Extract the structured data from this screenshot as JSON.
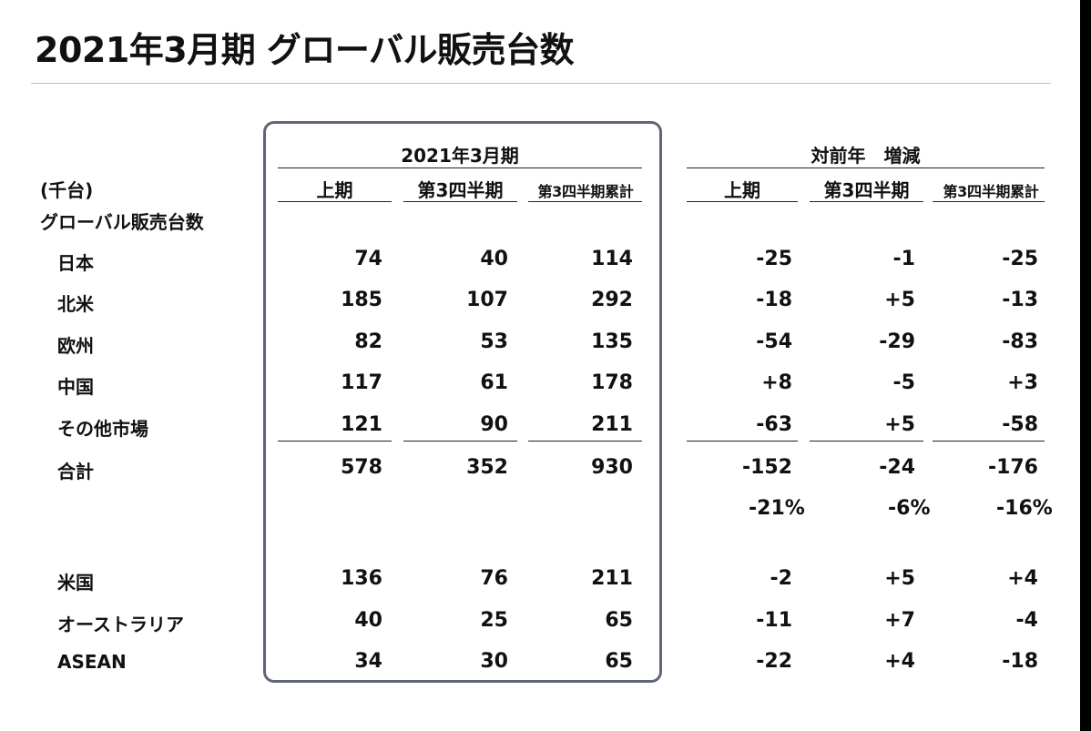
{
  "title": "2021年3月期 グローバル販売台数",
  "unit_label": "(千台)",
  "section_label": "グローバル販売台数",
  "group_headers": {
    "fy2021": "2021年3月期",
    "yoy": "対前年　増減"
  },
  "col_headers": [
    "上期",
    "第3四半期",
    "第3四半期累計",
    "上期",
    "第3四半期",
    "第3四半期累計"
  ],
  "rows": [
    {
      "label": "日本",
      "values": [
        "74",
        "40",
        "114",
        "-25",
        "-1",
        "-25"
      ]
    },
    {
      "label": "北米",
      "values": [
        "185",
        "107",
        "292",
        "-18",
        "+5",
        "-13"
      ]
    },
    {
      "label": "欧州",
      "values": [
        "82",
        "53",
        "135",
        "-54",
        "-29",
        "-83"
      ]
    },
    {
      "label": "中国",
      "values": [
        "117",
        "61",
        "178",
        "+8",
        "-5",
        "+3"
      ]
    },
    {
      "label": "その他市場",
      "values": [
        "121",
        "90",
        "211",
        "-63",
        "+5",
        "-58"
      ]
    },
    {
      "label": "合計",
      "values": [
        "578",
        "352",
        "930",
        "-152",
        "-24",
        "-176"
      ]
    },
    {
      "label": "米国",
      "values": [
        "136",
        "76",
        "211",
        "-2",
        "+5",
        "+4"
      ]
    },
    {
      "label": "オーストラリア",
      "values": [
        "40",
        "25",
        "65",
        "-11",
        "+7",
        "-4"
      ]
    },
    {
      "label": "ASEAN",
      "values": [
        "34",
        "30",
        "65",
        "-22",
        "+4",
        "-18"
      ]
    }
  ],
  "percent_row": [
    "-21%",
    "-6%",
    "-16%"
  ],
  "colors": {
    "box_border": "#5e6677",
    "text": "#111111"
  }
}
